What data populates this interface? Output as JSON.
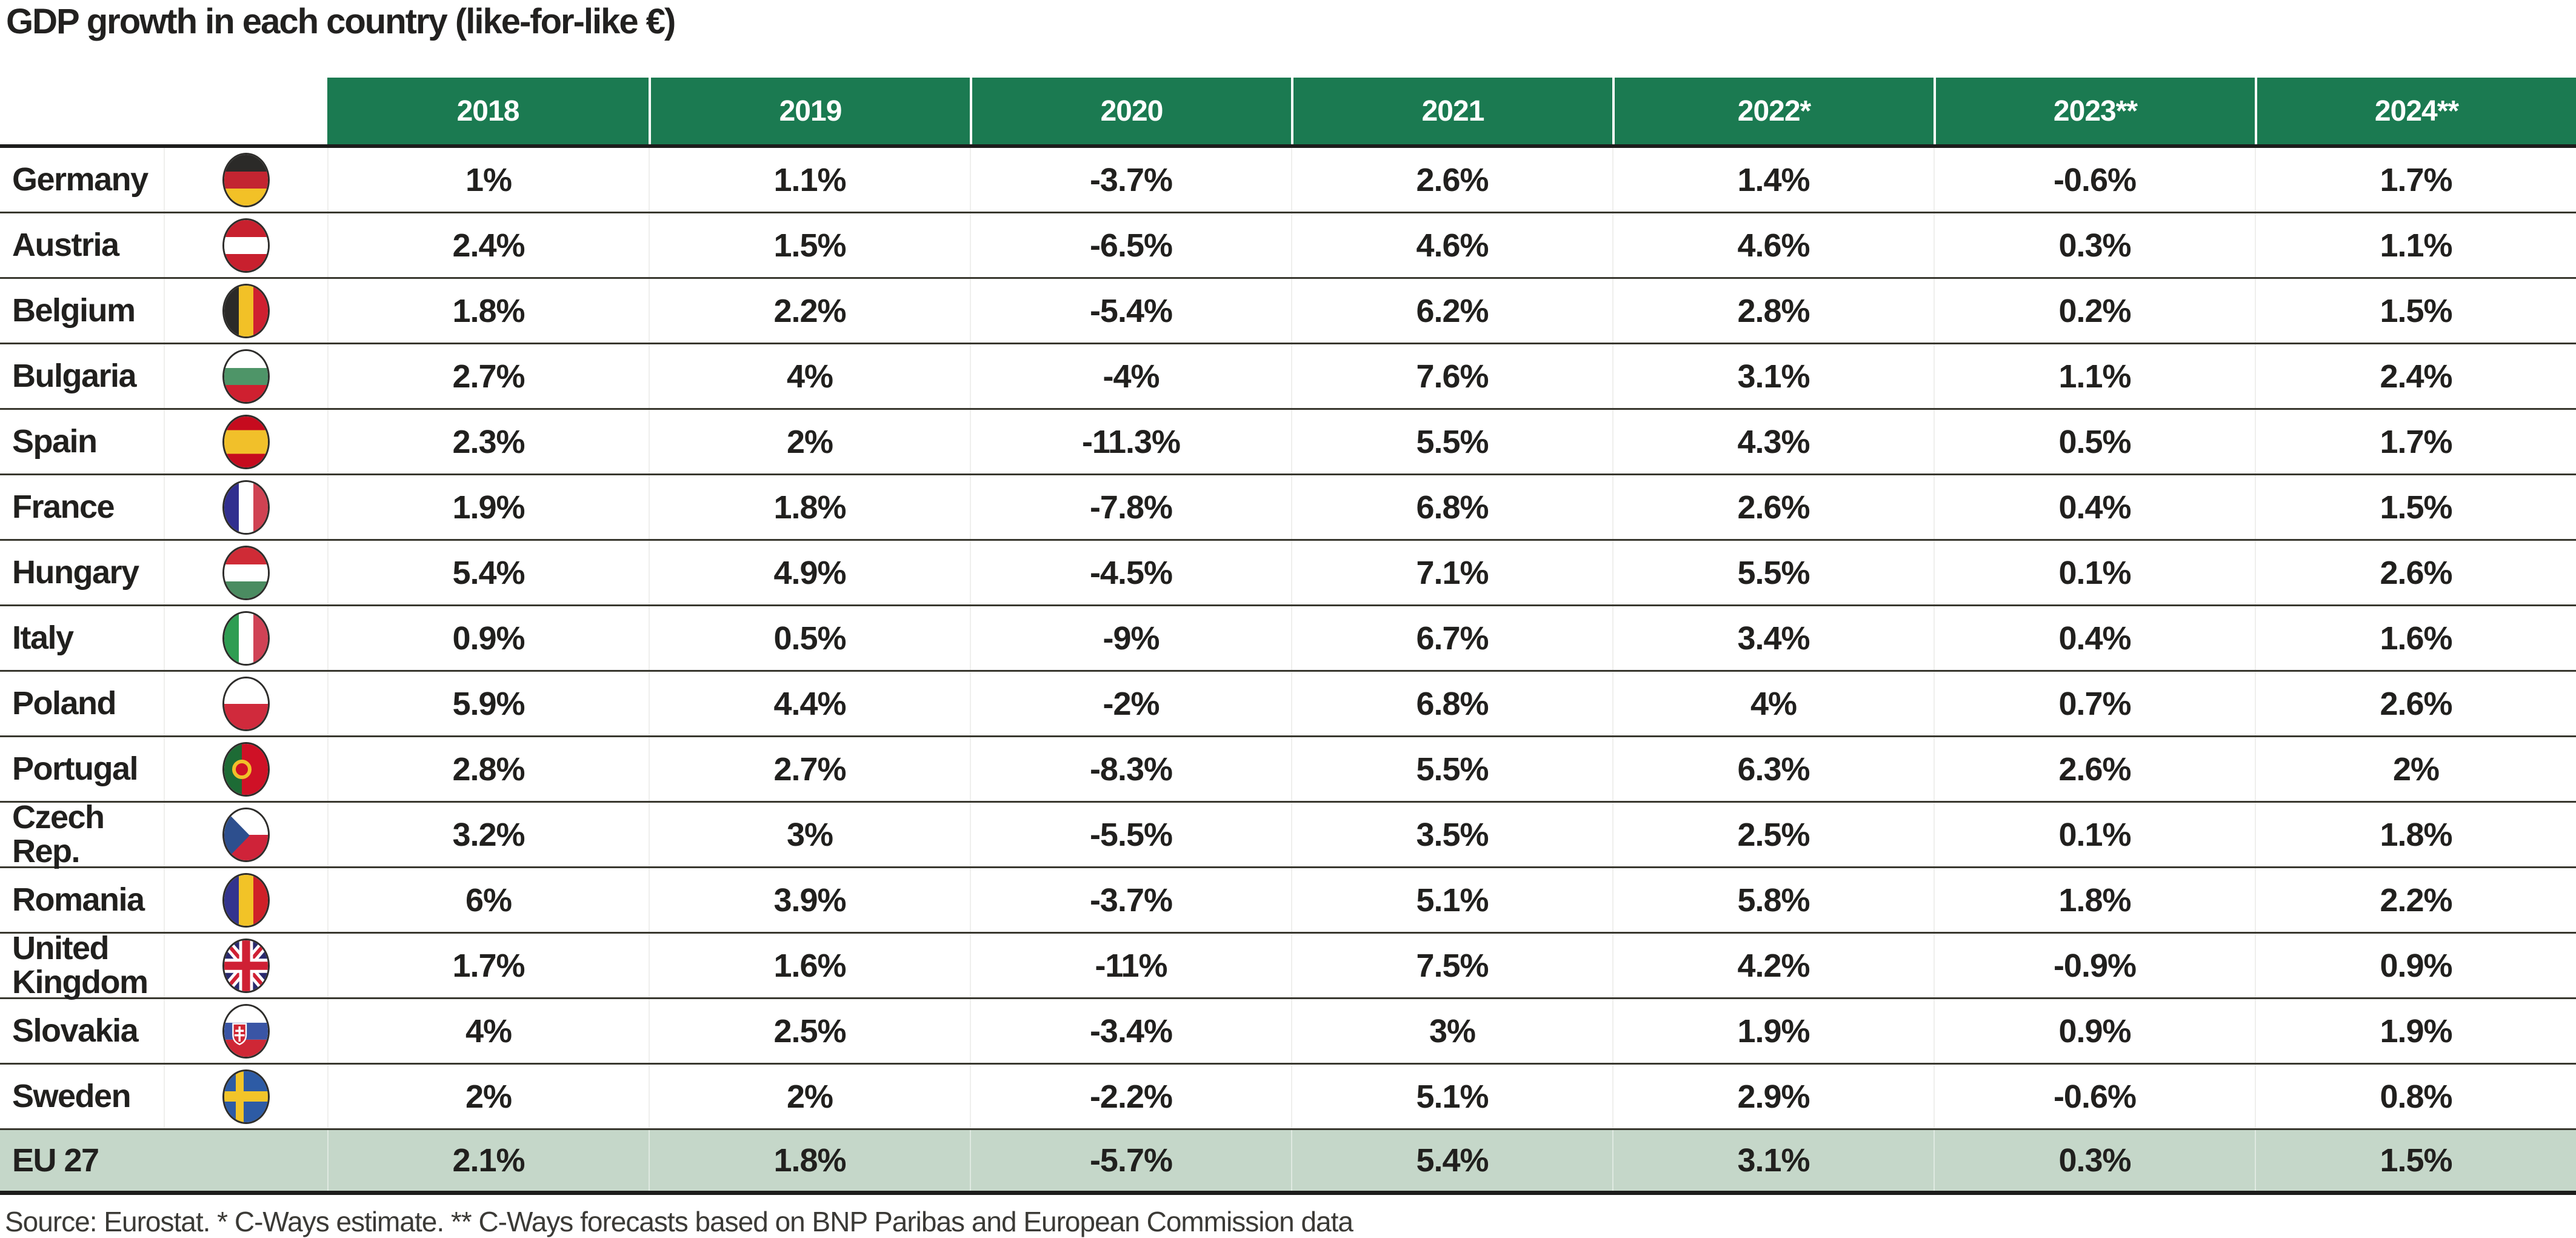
{
  "title": "GDP growth in each country (like-for-like €)",
  "footer": "Source: Eurostat. * C-Ways estimate. ** C-Ways forecasts based on BNP Paribas and European Commission data",
  "colors": {
    "header_bg": "#1b7a51",
    "summary_row_bg": "#c5d7c9",
    "text": "#21201e"
  },
  "chart_data": {
    "type": "table",
    "title": "GDP growth in each country (like-for-like €)",
    "columns": [
      "2018",
      "2019",
      "2020",
      "2021",
      "2022*",
      "2023**",
      "2024**"
    ],
    "rows": [
      {
        "country": "Germany",
        "flag": "de",
        "values": [
          "1%",
          "1.1%",
          "-3.7%",
          "2.6%",
          "1.4%",
          "-0.6%",
          "1.7%"
        ]
      },
      {
        "country": "Austria",
        "flag": "at",
        "values": [
          "2.4%",
          "1.5%",
          "-6.5%",
          "4.6%",
          "4.6%",
          "0.3%",
          "1.1%"
        ]
      },
      {
        "country": "Belgium",
        "flag": "be",
        "values": [
          "1.8%",
          "2.2%",
          "-5.4%",
          "6.2%",
          "2.8%",
          "0.2%",
          "1.5%"
        ]
      },
      {
        "country": "Bulgaria",
        "flag": "bg",
        "values": [
          "2.7%",
          "4%",
          "-4%",
          "7.6%",
          "3.1%",
          "1.1%",
          "2.4%"
        ]
      },
      {
        "country": "Spain",
        "flag": "es",
        "values": [
          "2.3%",
          "2%",
          "-11.3%",
          "5.5%",
          "4.3%",
          "0.5%",
          "1.7%"
        ]
      },
      {
        "country": "France",
        "flag": "fr",
        "values": [
          "1.9%",
          "1.8%",
          "-7.8%",
          "6.8%",
          "2.6%",
          "0.4%",
          "1.5%"
        ]
      },
      {
        "country": "Hungary",
        "flag": "hu",
        "values": [
          "5.4%",
          "4.9%",
          "-4.5%",
          "7.1%",
          "5.5%",
          "0.1%",
          "2.6%"
        ]
      },
      {
        "country": "Italy",
        "flag": "it",
        "values": [
          "0.9%",
          "0.5%",
          "-9%",
          "6.7%",
          "3.4%",
          "0.4%",
          "1.6%"
        ]
      },
      {
        "country": "Poland",
        "flag": "pl",
        "values": [
          "5.9%",
          "4.4%",
          "-2%",
          "6.8%",
          "4%",
          "0.7%",
          "2.6%"
        ]
      },
      {
        "country": "Portugal",
        "flag": "pt",
        "values": [
          "2.8%",
          "2.7%",
          "-8.3%",
          "5.5%",
          "6.3%",
          "2.6%",
          "2%"
        ]
      },
      {
        "country": "Czech Rep.",
        "flag": "cz",
        "values": [
          "3.2%",
          "3%",
          "-5.5%",
          "3.5%",
          "2.5%",
          "0.1%",
          "1.8%"
        ]
      },
      {
        "country": "Romania",
        "flag": "ro",
        "values": [
          "6%",
          "3.9%",
          "-3.7%",
          "5.1%",
          "5.8%",
          "1.8%",
          "2.2%"
        ]
      },
      {
        "country": "United Kingdom",
        "flag": "gb",
        "values": [
          "1.7%",
          "1.6%",
          "-11%",
          "7.5%",
          "4.2%",
          "-0.9%",
          "0.9%"
        ]
      },
      {
        "country": "Slovakia",
        "flag": "sk",
        "values": [
          "4%",
          "2.5%",
          "-3.4%",
          "3%",
          "1.9%",
          "0.9%",
          "1.9%"
        ]
      },
      {
        "country": "Sweden",
        "flag": "se",
        "values": [
          "2%",
          "2%",
          "-2.2%",
          "5.1%",
          "2.9%",
          "-0.6%",
          "0.8%"
        ]
      }
    ],
    "summary": {
      "label": "EU 27",
      "values": [
        "2.1%",
        "1.8%",
        "-5.7%",
        "5.4%",
        "3.1%",
        "0.3%",
        "1.5%"
      ]
    },
    "source_note": "Source: Eurostat. * C-Ways estimate. ** C-Ways forecasts based on BNP Paribas and European Commission data"
  }
}
